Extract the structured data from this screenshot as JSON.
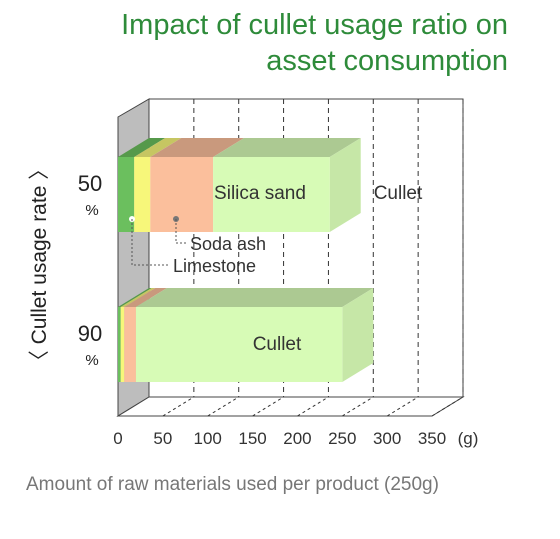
{
  "title_lines": [
    "Impact of cullet usage ratio on",
    "asset consumption"
  ],
  "colors": {
    "title": "#2e8b3a",
    "limestone": "#6bbf5e",
    "soda_ash": "#f7f77a",
    "silica_sand": "#fbbf9c",
    "cullet": "#d7fbb6"
  },
  "chart_data": {
    "type": "bar",
    "orientation": "horizontal",
    "stacked": true,
    "style": "3d",
    "xlabel": "Amount of raw materials used per product (250g)",
    "ylabel": "〈 Cullet usage rate 〉",
    "x_unit": "(g)",
    "xlim": [
      0,
      350
    ],
    "xticks": [
      0,
      50,
      100,
      150,
      200,
      250,
      300,
      350
    ],
    "grid": "vertical dashed",
    "categories": [
      {
        "label": "50",
        "unit": "%"
      },
      {
        "label": "90",
        "unit": "%"
      }
    ],
    "series": [
      {
        "name": "Limestone",
        "values": [
          18,
          3
        ]
      },
      {
        "name": "Soda ash",
        "values": [
          18,
          4
        ]
      },
      {
        "name": "Silica sand",
        "values": [
          70,
          13
        ]
      },
      {
        "name": "Cullet",
        "values": [
          130,
          230
        ]
      }
    ],
    "annotations": [
      "Silica sand",
      "Cullet",
      "Cullet",
      "Soda ash",
      "Limestone"
    ]
  }
}
